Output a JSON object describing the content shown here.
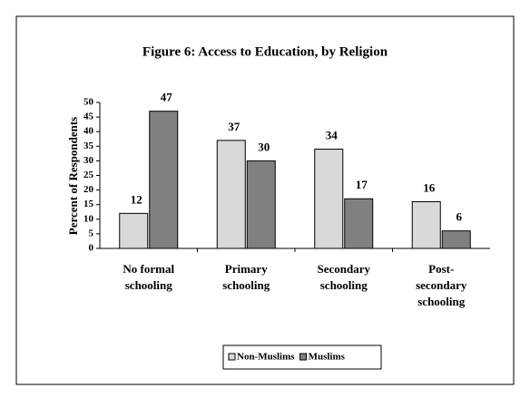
{
  "chart_data": {
    "type": "bar",
    "title": "Figure 6:  Access to Education, by Religion",
    "y_label": "Percent of Respondents",
    "categories": [
      [
        "No formal",
        "schooling"
      ],
      [
        "Primary",
        "schooling"
      ],
      [
        "Secondary",
        "schooling"
      ],
      [
        "Post-",
        "secondary",
        "schooling"
      ]
    ],
    "series": [
      {
        "name": "Non-Muslims",
        "color": "#d9d9d9",
        "values": [
          12,
          37,
          34,
          16
        ]
      },
      {
        "name": "Muslims",
        "color": "#808080",
        "values": [
          47,
          30,
          17,
          6
        ]
      }
    ],
    "ylim": [
      0,
      50
    ],
    "yticks": [
      0,
      5,
      10,
      15,
      20,
      25,
      30,
      35,
      40,
      45,
      50
    ],
    "grid": false,
    "legend": "bottom"
  }
}
